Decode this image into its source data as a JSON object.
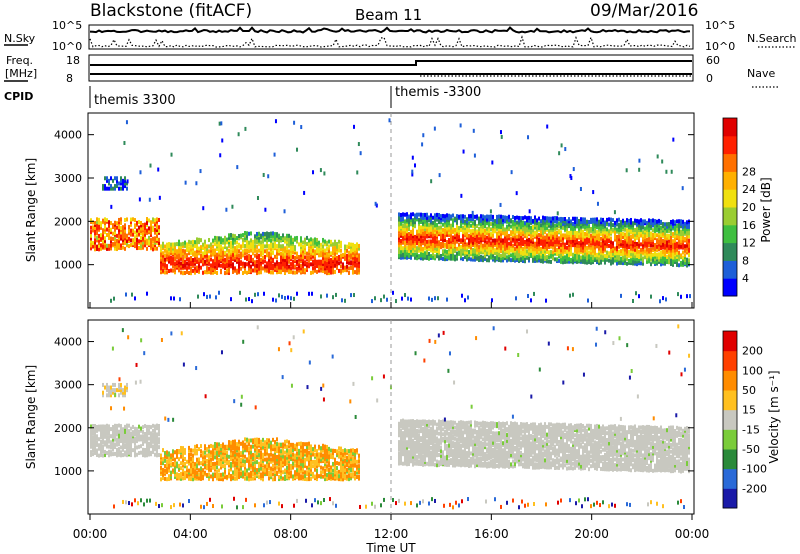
{
  "header": {
    "title": "Blackstone (fitACF)",
    "beam": "Beam 11",
    "date": "09/Mar/2016"
  },
  "panels": {
    "nsky": {
      "label": "N.Sky",
      "ticks": [
        "10^5",
        "10^0"
      ]
    },
    "nsearch": {
      "label": "N.Search",
      "ticks": [
        "10^5",
        "10^0"
      ]
    },
    "freq": {
      "label_line1": "Freq.",
      "label_line2": "[MHz]",
      "ticks": [
        "18",
        "8"
      ]
    },
    "nave": {
      "label": "Nave",
      "ticks": [
        "60",
        "0"
      ]
    },
    "cpid": {
      "label": "CPID",
      "segments": [
        "themis 3300",
        "themis -3300"
      ]
    }
  },
  "chart_data": [
    {
      "type": "heatmap",
      "name": "power",
      "ylabel": "Slant Range [km]",
      "ylim": [
        0,
        4500
      ],
      "yticks": [
        1000,
        2000,
        3000,
        4000
      ],
      "xlim": [
        "00:00",
        "24:00"
      ],
      "colorbar": {
        "label": "Power [dB]",
        "ticks": [
          "4",
          "8",
          "12",
          "16",
          "20",
          "24",
          "28"
        ],
        "colors": [
          "#0000ff",
          "#1e5fd8",
          "#2f8a5a",
          "#3fbf40",
          "#9acd32",
          "#f0e010",
          "#ffb000",
          "#ff7000",
          "#ff2000",
          "#e00000"
        ]
      }
    },
    {
      "type": "heatmap",
      "name": "velocity",
      "ylabel": "Slant Range [km]",
      "ylim": [
        0,
        4500
      ],
      "yticks": [
        1000,
        2000,
        3000,
        4000
      ],
      "xlim": [
        "00:00",
        "24:00"
      ],
      "xlabel": "Time UT",
      "xticks": [
        "00:00",
        "04:00",
        "08:00",
        "12:00",
        "16:00",
        "20:00",
        "00:00"
      ],
      "colorbar": {
        "label": "Velocity [m s⁻¹]",
        "ticks": [
          "200",
          "100",
          "50",
          "15",
          "-15",
          "-50",
          "-100",
          "-200"
        ],
        "colors": [
          "#1a1aa8",
          "#2a6ad8",
          "#2a8a3a",
          "#7acc3a",
          "#c8c8c0",
          "#ffc020",
          "#ff8c00",
          "#ff4000",
          "#e00000"
        ]
      }
    }
  ]
}
